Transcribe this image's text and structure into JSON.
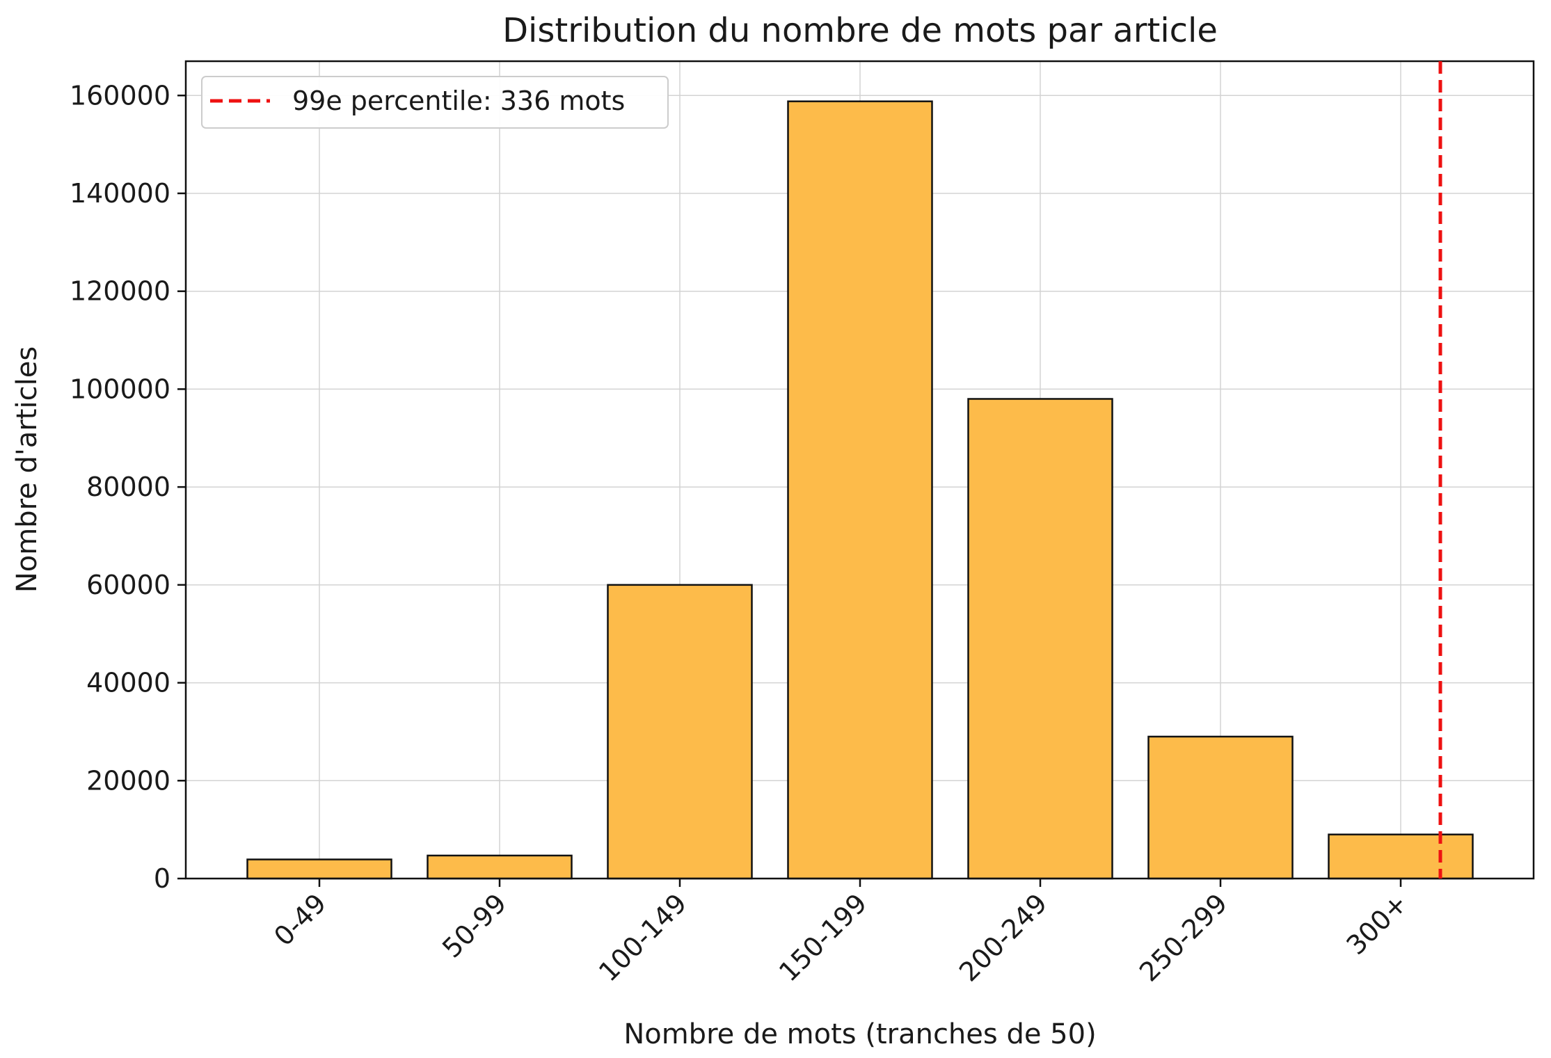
{
  "chart_data": {
    "type": "bar",
    "title": "Distribution du nombre de mots par article",
    "xlabel": "Nombre de mots (tranches de 50)",
    "ylabel": "Nombre d'articles",
    "categories": [
      "0-49",
      "50-99",
      "100-149",
      "150-199",
      "200-249",
      "250-299",
      "300+"
    ],
    "values": [
      3900,
      4700,
      60000,
      158800,
      98000,
      29000,
      9000
    ],
    "ylim": [
      0,
      167000
    ],
    "yticks": [
      0,
      20000,
      40000,
      60000,
      80000,
      100000,
      120000,
      140000,
      160000
    ],
    "ytick_labels": [
      "0",
      "20000",
      "40000",
      "60000",
      "80000",
      "100000",
      "120000",
      "140000",
      "160000"
    ],
    "bar_color": "#fdbb4a",
    "bar_edge_color": "#111111",
    "grid": true,
    "reference_line": {
      "orientation": "vertical",
      "value": 336,
      "label": "99e percentile: 336 mots",
      "color": "#ee1111",
      "style": "dashed"
    },
    "legend": {
      "placement": "top-left",
      "entries": [
        "99e percentile: 336 mots"
      ]
    }
  }
}
